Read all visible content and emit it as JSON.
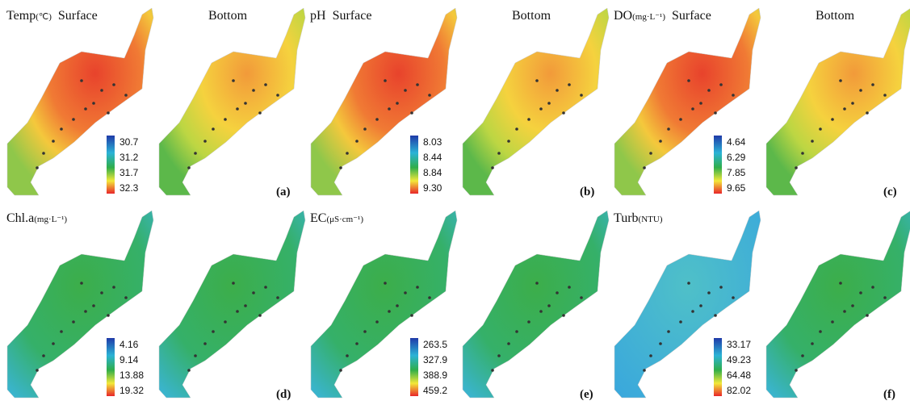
{
  "panels": [
    {
      "title": "Temp",
      "unit": "(℃)",
      "surface_label": "Surface",
      "bottom_label": "Bottom",
      "legend": [
        "30.7",
        "31.2",
        "31.7",
        "32.3"
      ],
      "letter": "(a)"
    },
    {
      "title": "pH",
      "surface_label": "Surface",
      "bottom_label": "Bottom",
      "legend": [
        "8.03",
        "8.44",
        "8.84",
        "9.30"
      ],
      "letter": "(b)"
    },
    {
      "title": "DO",
      "unit": "(mg·L⁻¹)",
      "surface_label": "Surface",
      "bottom_label": "Bottom",
      "legend": [
        "4.64",
        "6.29",
        "7.85",
        "9.65"
      ],
      "letter": "(c)"
    },
    {
      "title": "Chl.a",
      "unit": "(mg·L⁻¹)",
      "legend": [
        "4.16",
        "9.14",
        "13.88",
        "19.32"
      ],
      "letter": "(d)"
    },
    {
      "title": "EC",
      "unit": "(μS·cm⁻¹)",
      "legend": [
        "263.5",
        "327.9",
        "388.9",
        "459.2"
      ],
      "letter": "(e)"
    },
    {
      "title": "Turb",
      "unit": "(NTU)",
      "legend": [
        "33.17",
        "49.23",
        "64.48",
        "82.02"
      ],
      "letter": "(f)"
    }
  ]
}
